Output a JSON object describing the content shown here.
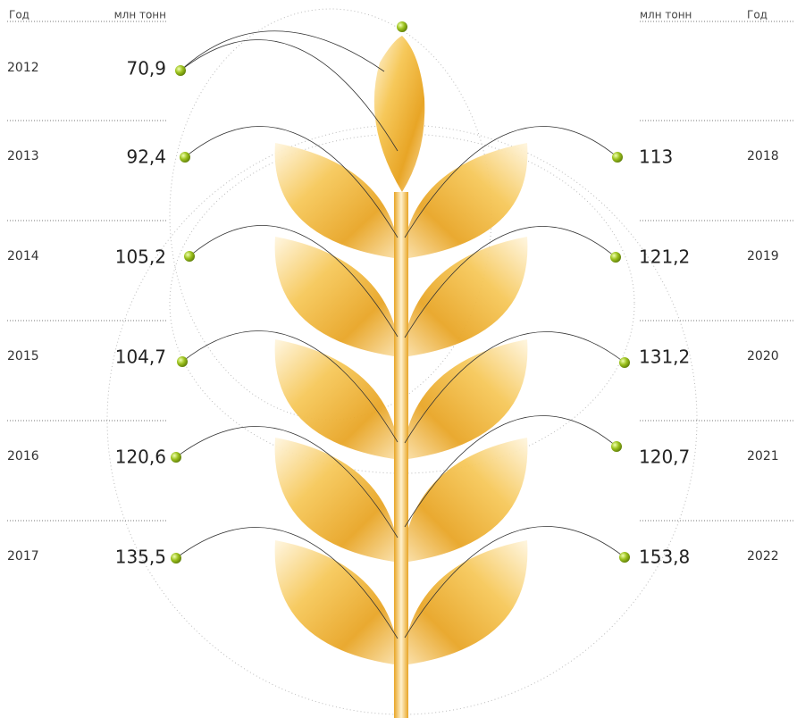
{
  "header": {
    "year_label": "Год",
    "unit_label": "млн тонн"
  },
  "left": [
    {
      "year": "2012",
      "value": "70,9"
    },
    {
      "year": "2013",
      "value": "92,4"
    },
    {
      "year": "2014",
      "value": "105,2"
    },
    {
      "year": "2015",
      "value": "104,7"
    },
    {
      "year": "2016",
      "value": "120,6"
    },
    {
      "year": "2017",
      "value": "135,5"
    }
  ],
  "right": [
    {
      "year": "2018",
      "value": "113"
    },
    {
      "year": "2019",
      "value": "121,2"
    },
    {
      "year": "2020",
      "value": "131,2"
    },
    {
      "year": "2021",
      "value": "120,7"
    },
    {
      "year": "2022",
      "value": "153,8"
    }
  ]
}
